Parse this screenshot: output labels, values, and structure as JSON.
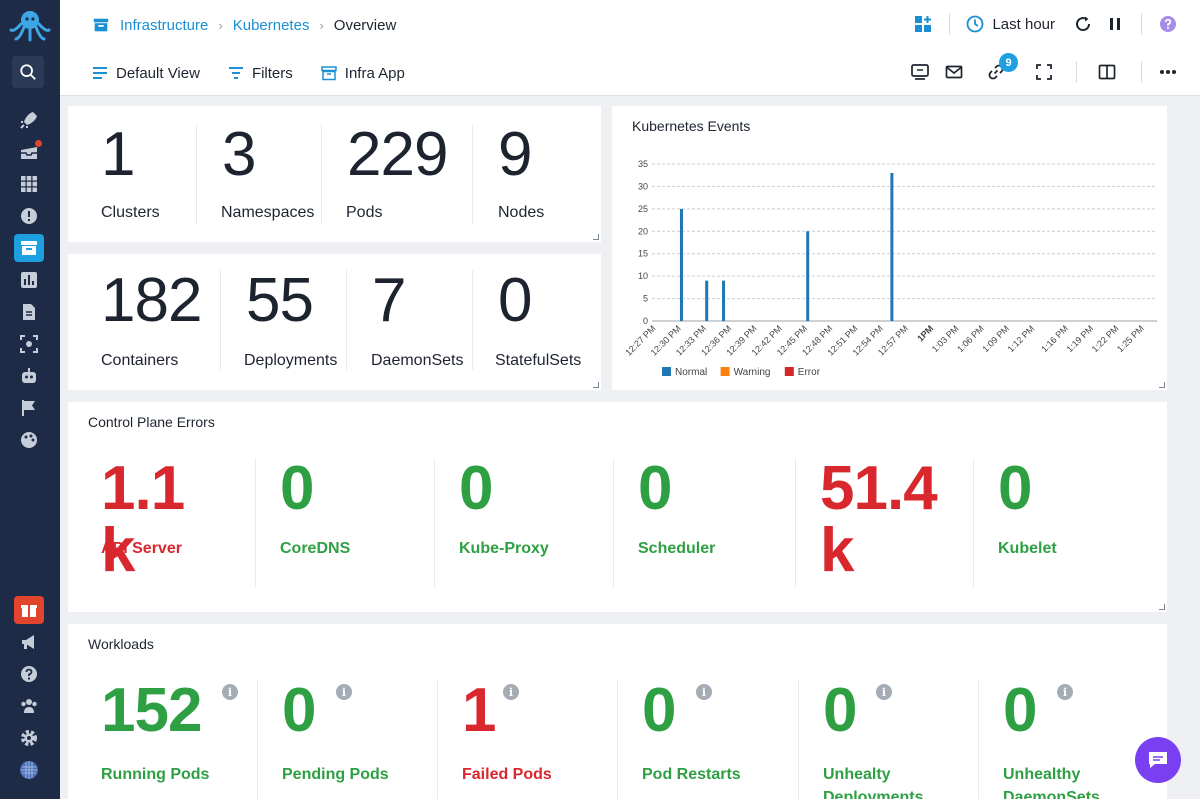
{
  "breadcrumb": {
    "items": [
      "Infrastructure",
      "Kubernetes"
    ],
    "current": "Overview"
  },
  "toolbar": {
    "default_view": "Default View",
    "filters": "Filters",
    "infra_app": "Infra App"
  },
  "time_range": "Last hour",
  "links_badge": "9",
  "stats_top": [
    {
      "value": "1",
      "label": "Clusters"
    },
    {
      "value": "3",
      "label": "Namespaces"
    },
    {
      "value": "229",
      "label": "Pods"
    },
    {
      "value": "9",
      "label": "Nodes"
    }
  ],
  "stats_bottom": [
    {
      "value": "182",
      "label": "Containers"
    },
    {
      "value": "55",
      "label": "Deployments"
    },
    {
      "value": "7",
      "label": "DaemonSets"
    },
    {
      "value": "0",
      "label": "StatefulSets"
    }
  ],
  "control_plane": {
    "title": "Control Plane Errors",
    "items": [
      {
        "value": "1.1 k",
        "label": "API Server",
        "status": "error"
      },
      {
        "value": "0",
        "label": "CoreDNS",
        "status": "ok"
      },
      {
        "value": "0",
        "label": "Kube-Proxy",
        "status": "ok"
      },
      {
        "value": "0",
        "label": "Scheduler",
        "status": "ok"
      },
      {
        "value": "51.4 k",
        "label": "",
        "status": "error"
      },
      {
        "value": "0",
        "label": "Kubelet",
        "status": "ok"
      }
    ]
  },
  "workloads": {
    "title": "Workloads",
    "items": [
      {
        "value": "152",
        "label": "Running Pods",
        "status": "ok"
      },
      {
        "value": "0",
        "label": "Pending Pods",
        "status": "ok"
      },
      {
        "value": "1",
        "label": "Failed Pods",
        "status": "error"
      },
      {
        "value": "0",
        "label": "Pod Restarts",
        "status": "ok"
      },
      {
        "value": "0",
        "label": "Unhealty Deployments",
        "status": "ok"
      },
      {
        "value": "0",
        "label": "Unhealthy DaemonSets",
        "status": "ok"
      }
    ]
  },
  "colors": {
    "accent": "#1e9fe0",
    "error": "#d9272e",
    "ok": "#2ea043",
    "sidebar": "#1d2b47"
  },
  "chart_data": {
    "type": "bar",
    "title": "Kubernetes Events",
    "x": [
      "12:27 PM",
      "12:28 PM",
      "12:29 PM",
      "12:30 PM",
      "12:31 PM",
      "12:32 PM",
      "12:33 PM",
      "12:34 PM",
      "12:35 PM",
      "12:36 PM",
      "12:37 PM",
      "12:38 PM",
      "12:39 PM",
      "12:40 PM",
      "12:41 PM",
      "12:42 PM",
      "12:43 PM",
      "12:44 PM",
      "12:45 PM",
      "12:46 PM",
      "12:47 PM",
      "12:48 PM",
      "12:49 PM",
      "12:50 PM",
      "12:51 PM",
      "12:52 PM",
      "12:53 PM",
      "12:54 PM",
      "12:55 PM",
      "12:56 PM",
      "12:57 PM",
      "12:58 PM",
      "12:59 PM",
      "1PM",
      "1:01 PM",
      "1:02 PM",
      "1:03 PM",
      "1:04 PM",
      "1:05 PM",
      "1:06 PM",
      "1:07 PM",
      "1:08 PM",
      "1:09 PM",
      "1:10 PM",
      "1:11 PM",
      "1:12 PM",
      "1:13 PM",
      "1:14 PM",
      "1:15 PM",
      "1:16 PM",
      "1:17 PM",
      "1:18 PM",
      "1:19 PM",
      "1:20 PM",
      "1:21 PM",
      "1:22 PM",
      "1:23 PM",
      "1:24 PM",
      "1:25 PM",
      "1:26 PM"
    ],
    "tick_labels": [
      "12:27 PM",
      "12:30 PM",
      "12:33 PM",
      "12:36 PM",
      "12:39 PM",
      "12:42 PM",
      "12:45 PM",
      "12:48 PM",
      "12:51 PM",
      "12:54 PM",
      "12:57 PM",
      "1PM",
      "1:03 PM",
      "1:06 PM",
      "1:09 PM",
      "1:12 PM",
      "1:16 PM",
      "1:19 PM",
      "1:22 PM",
      "1:25 PM"
    ],
    "series": [
      {
        "name": "Normal",
        "color": "#1f77b4",
        "points": [
          [
            "12:30 PM",
            25
          ],
          [
            "12:33 PM",
            9
          ],
          [
            "12:35 PM",
            9
          ],
          [
            "12:45 PM",
            20
          ],
          [
            "12:55 PM",
            33
          ]
        ]
      },
      {
        "name": "Warning",
        "color": "#ff7f0e",
        "points": []
      },
      {
        "name": "Error",
        "color": "#d62728",
        "points": []
      }
    ],
    "ylim": [
      0,
      35
    ],
    "yticks": [
      0,
      5,
      10,
      15,
      20,
      25,
      30,
      35
    ],
    "grid": true,
    "legend": "bottom-left"
  }
}
